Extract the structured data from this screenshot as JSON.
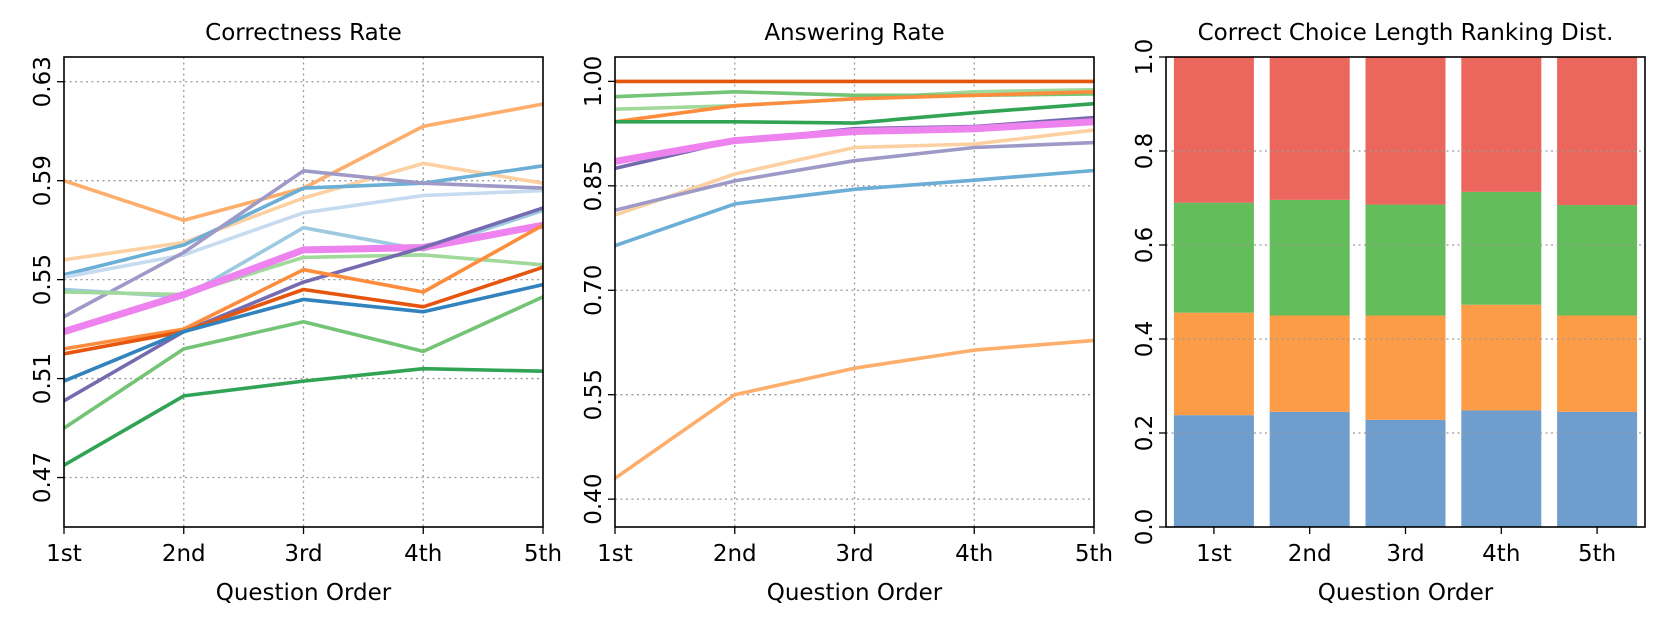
{
  "chart_data": [
    {
      "type": "line",
      "title": "Correctness Rate",
      "xlabel": "Question Order",
      "ylabel": "",
      "x": [
        "1st",
        "2nd",
        "3rd",
        "4th",
        "5th"
      ],
      "ylim": [
        0.45,
        0.64
      ],
      "yticks": [
        "0.47",
        "0.51",
        "0.55",
        "0.59",
        "0.63"
      ],
      "ytick_values": [
        0.47,
        0.51,
        0.55,
        0.59,
        0.63
      ],
      "grid": true,
      "series": [
        {
          "color": "#fdae6b",
          "values": [
            0.59,
            0.574,
            0.587,
            0.612,
            0.621
          ]
        },
        {
          "color": "#fdd0a2",
          "values": [
            0.558,
            0.565,
            0.583,
            0.597,
            0.589
          ]
        },
        {
          "color": "#6baed6",
          "values": [
            0.552,
            0.564,
            0.587,
            0.589,
            0.596
          ]
        },
        {
          "color": "#c6dbef",
          "values": [
            0.551,
            0.56,
            0.577,
            0.584,
            0.586
          ]
        },
        {
          "color": "#9e9ac8",
          "values": [
            0.535,
            0.561,
            0.594,
            0.589,
            0.587
          ]
        },
        {
          "color": "#9ecae1",
          "values": [
            0.546,
            0.543,
            0.571,
            0.562,
            0.578
          ]
        },
        {
          "color": "#a1d99b",
          "values": [
            0.545,
            0.544,
            0.559,
            0.56,
            0.556
          ]
        },
        {
          "color": "#ee82ee",
          "width": 7,
          "values": [
            0.529,
            0.544,
            0.562,
            0.563,
            0.572
          ]
        },
        {
          "color": "#756bb1",
          "values": [
            0.501,
            0.529,
            0.549,
            0.563,
            0.579
          ]
        },
        {
          "color": "#fd8d3c",
          "values": [
            0.522,
            0.53,
            0.554,
            0.545,
            0.572
          ]
        },
        {
          "color": "#e6550d",
          "values": [
            0.52,
            0.529,
            0.546,
            0.539,
            0.555
          ]
        },
        {
          "color": "#3182bd",
          "values": [
            0.509,
            0.529,
            0.542,
            0.537,
            0.548
          ]
        },
        {
          "color": "#74c476",
          "values": [
            0.49,
            0.522,
            0.533,
            0.521,
            0.543
          ]
        },
        {
          "color": "#31a354",
          "values": [
            0.475,
            0.503,
            0.509,
            0.514,
            0.513
          ]
        }
      ]
    },
    {
      "type": "line",
      "title": "Answering Rate",
      "xlabel": "Question Order",
      "ylabel": "",
      "x": [
        "1st",
        "2nd",
        "3rd",
        "4th",
        "5th"
      ],
      "ylim": [
        0.36,
        1.035
      ],
      "yticks": [
        "0.40",
        "0.55",
        "0.70",
        "0.85",
        "1.00"
      ],
      "ytick_values": [
        0.4,
        0.55,
        0.7,
        0.85,
        1.0
      ],
      "grid": true,
      "series": [
        {
          "color": "#e6550d",
          "values": [
            1.0,
            1.0,
            1.0,
            1.0,
            1.0
          ]
        },
        {
          "color": "#a1d99b",
          "values": [
            0.96,
            0.965,
            0.975,
            0.985,
            0.988
          ]
        },
        {
          "color": "#74c476",
          "values": [
            0.978,
            0.985,
            0.98,
            0.98,
            0.982
          ]
        },
        {
          "color": "#fd8d3c",
          "values": [
            0.942,
            0.965,
            0.975,
            0.98,
            0.985
          ]
        },
        {
          "color": "#31a354",
          "values": [
            0.942,
            0.942,
            0.94,
            0.955,
            0.968
          ]
        },
        {
          "color": "#fdd0a2",
          "values": [
            0.808,
            0.867,
            0.905,
            0.91,
            0.93
          ]
        },
        {
          "color": "#756bb1",
          "values": [
            0.875,
            0.915,
            0.932,
            0.935,
            0.948
          ]
        },
        {
          "color": "#ee82ee",
          "width": 7,
          "values": [
            0.885,
            0.915,
            0.928,
            0.932,
            0.942
          ]
        },
        {
          "color": "#9e9ac8",
          "values": [
            0.815,
            0.857,
            0.886,
            0.905,
            0.912
          ]
        },
        {
          "color": "#6baed6",
          "values": [
            0.764,
            0.824,
            0.845,
            0.858,
            0.872
          ]
        },
        {
          "color": "#fdae6b",
          "values": [
            0.43,
            0.55,
            0.588,
            0.614,
            0.628
          ]
        }
      ]
    },
    {
      "type": "bar",
      "stacked": true,
      "title": "Correct Choice Length Ranking Dist.",
      "xlabel": "Question Order",
      "ylabel": "",
      "categories": [
        "1st",
        "2nd",
        "3rd",
        "4th",
        "5th"
      ],
      "ylim": [
        0,
        1.0
      ],
      "yticks": [
        "0.0",
        "0.2",
        "0.4",
        "0.6",
        "0.8",
        "1.0"
      ],
      "ytick_values": [
        0.0,
        0.2,
        0.4,
        0.6,
        0.8,
        1.0
      ],
      "grid": "y",
      "series": [
        {
          "color": "#6f9dcd",
          "values": [
            0.238,
            0.245,
            0.228,
            0.248,
            0.245
          ]
        },
        {
          "color": "#fd9c47",
          "values": [
            0.218,
            0.205,
            0.222,
            0.225,
            0.205
          ]
        },
        {
          "color": "#63bd5b",
          "values": [
            0.234,
            0.246,
            0.236,
            0.24,
            0.235
          ]
        },
        {
          "color": "#eb665c",
          "values": [
            0.31,
            0.304,
            0.314,
            0.287,
            0.315
          ]
        }
      ]
    }
  ]
}
